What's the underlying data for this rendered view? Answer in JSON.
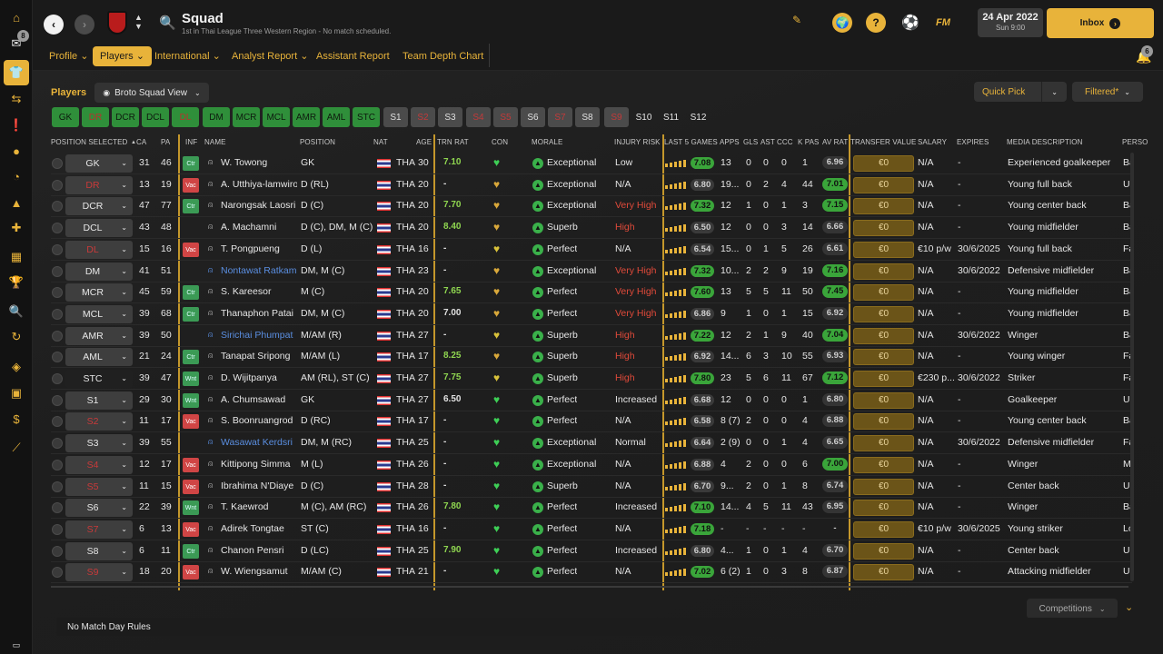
{
  "sidebar": {
    "badges": {
      "inbox": "8"
    },
    "icons": [
      "home-icon",
      "inbox-icon",
      "squad-icon",
      "transfers-icon",
      "schedule-icon",
      "competitions-icon",
      "training-icon",
      "medical-icon",
      "calendar-icon",
      "trophy-icon",
      "search-icon",
      "refresh-icon",
      "club-icon",
      "briefcase-icon",
      "finances-icon",
      "dev-icon",
      "small-screen-icon"
    ]
  },
  "header": {
    "club_badge": "crest-icon",
    "search_icon": "search-icon",
    "title": "Squad",
    "subtitle": "1st in Thai League Three Western Region - No match scheduled.",
    "date": "24 Apr 2022",
    "time": "Sun 9:00",
    "inbox_label": "Inbox",
    "inbox_badge": "6",
    "fm_label": "FM"
  },
  "subnav": {
    "items": [
      {
        "label": "Profile",
        "chevron": true
      },
      {
        "label": "Players",
        "chevron": true,
        "active": true
      },
      {
        "label": "International",
        "chevron": true
      },
      {
        "label": "Analyst Report",
        "chevron": true
      },
      {
        "label": "Assistant Report",
        "chevron": false
      },
      {
        "label": "Team Depth Chart",
        "chevron": false
      }
    ]
  },
  "toolbar": {
    "section_label": "Players",
    "view_label": "Broto Squad View",
    "quick_pick": "Quick Pick",
    "filtered": "Filtered*"
  },
  "position_buttons": [
    {
      "label": "GK",
      "style": "green"
    },
    {
      "label": "DR",
      "style": "green-red"
    },
    {
      "label": "DCR",
      "style": "green"
    },
    {
      "label": "DCL",
      "style": "green"
    },
    {
      "label": "DL",
      "style": "green-red"
    },
    {
      "label": "DM",
      "style": "green"
    },
    {
      "label": "MCR",
      "style": "green"
    },
    {
      "label": "MCL",
      "style": "green"
    },
    {
      "label": "AMR",
      "style": "green"
    },
    {
      "label": "AML",
      "style": "green"
    },
    {
      "label": "STC",
      "style": "green"
    },
    {
      "label": "S1",
      "style": "gray"
    },
    {
      "label": "S2",
      "style": "gray-red"
    },
    {
      "label": "S3",
      "style": "gray"
    },
    {
      "label": "S4",
      "style": "gray-red"
    },
    {
      "label": "S5",
      "style": "gray-red"
    },
    {
      "label": "S6",
      "style": "gray"
    },
    {
      "label": "S7",
      "style": "gray-red"
    },
    {
      "label": "S8",
      "style": "gray"
    },
    {
      "label": "S9",
      "style": "gray-red"
    },
    {
      "label": "S10",
      "style": "none"
    },
    {
      "label": "S11",
      "style": "none"
    },
    {
      "label": "S12",
      "style": "none"
    }
  ],
  "columns": [
    "POSITION SELECTED",
    "CA",
    "PA",
    "INF",
    "NAME",
    "POSITION",
    "NAT",
    "AGE",
    "TRN RAT",
    "CON",
    "MORALE",
    "INJURY RISK",
    "LAST 5 GAMES",
    "APPS",
    "GLS",
    "AST",
    "CCC",
    "K PAS",
    "AV RAT",
    "TRANSFER VALUE",
    "SALARY",
    "EXPIRES",
    "MEDIA DESCRIPTION",
    "PERSO"
  ],
  "rows": [
    {
      "sel": "GK",
      "sel_red": false,
      "ca": "31",
      "pa": "46",
      "inf": "Ctr",
      "name": "W. Towong",
      "name_blue": false,
      "pos": "GK",
      "nat": "THA",
      "age": "30",
      "trn": "7.10",
      "trn_g": true,
      "heart": "#3ecf56",
      "morale": "Exceptional",
      "injury": "Low",
      "injury_red": false,
      "last5": "7.08",
      "last5_g": true,
      "apps": "13",
      "gls": "0",
      "ast": "0",
      "ccc": "0",
      "kpas": "1",
      "avrat": "6.96",
      "avrat_g": false,
      "tv": "€0",
      "salary": "N/A",
      "expires": "-",
      "media": "Experienced goalkeeper",
      "perso": "Bal"
    },
    {
      "sel": "DR",
      "sel_red": true,
      "ca": "13",
      "pa": "19",
      "inf": "Vac",
      "name": "A. Utthiya-lamwiroj",
      "name_blue": false,
      "pos": "D (RL)",
      "nat": "THA",
      "age": "20",
      "trn": "-",
      "trn_g": false,
      "heart": "#d9a83a",
      "morale": "Exceptional",
      "injury": "N/A",
      "injury_red": false,
      "last5": "6.80",
      "last5_g": false,
      "apps": "19...",
      "gls": "0",
      "ast": "2",
      "ccc": "4",
      "kpas": "44",
      "avrat": "7.01",
      "avrat_g": true,
      "tv": "€0",
      "salary": "N/A",
      "expires": "-",
      "media": "Young full back",
      "perso": "Una"
    },
    {
      "sel": "DCR",
      "sel_red": false,
      "ca": "47",
      "pa": "77",
      "inf": "Ctr",
      "name": "Narongsak Laosri",
      "name_blue": false,
      "pos": "D (C)",
      "nat": "THA",
      "age": "20",
      "trn": "7.70",
      "trn_g": true,
      "heart": "#d9a83a",
      "morale": "Exceptional",
      "injury": "Very High",
      "injury_red": true,
      "last5": "7.32",
      "last5_g": true,
      "apps": "12",
      "gls": "1",
      "ast": "0",
      "ccc": "1",
      "kpas": "3",
      "avrat": "7.15",
      "avrat_g": true,
      "tv": "€0",
      "salary": "N/A",
      "expires": "-",
      "media": "Young center back",
      "perso": "Bal"
    },
    {
      "sel": "DCL",
      "sel_red": false,
      "ca": "43",
      "pa": "48",
      "inf": "",
      "name": "A. Machamni",
      "name_blue": false,
      "pos": "D (C), DM, M (C)",
      "nat": "THA",
      "age": "20",
      "trn": "8.40",
      "trn_g": true,
      "heart": "#d9a83a",
      "morale": "Superb",
      "injury": "High",
      "injury_red": true,
      "last5": "6.50",
      "last5_g": false,
      "apps": "12",
      "gls": "0",
      "ast": "0",
      "ccc": "3",
      "kpas": "14",
      "avrat": "6.66",
      "avrat_g": false,
      "tv": "€0",
      "salary": "N/A",
      "expires": "-",
      "media": "Young midfielder",
      "perso": "Bal"
    },
    {
      "sel": "DL",
      "sel_red": true,
      "ca": "15",
      "pa": "16",
      "inf": "Vac",
      "name": "T. Pongpueng",
      "name_blue": false,
      "pos": "D (L)",
      "nat": "THA",
      "age": "16",
      "trn": "-",
      "trn_g": false,
      "heart": "#d9c23a",
      "morale": "Perfect",
      "injury": "N/A",
      "injury_red": false,
      "last5": "6.54",
      "last5_g": false,
      "apps": "15...",
      "gls": "0",
      "ast": "1",
      "ccc": "5",
      "kpas": "26",
      "avrat": "6.61",
      "avrat_g": false,
      "tv": "€0",
      "salary": "€10 p/w",
      "expires": "30/6/2025",
      "media": "Young full back",
      "perso": "Fai"
    },
    {
      "sel": "DM",
      "sel_red": false,
      "ca": "41",
      "pa": "51",
      "inf": "",
      "name": "Nontawat Ratkam",
      "name_blue": true,
      "pos": "DM, M (C)",
      "nat": "THA",
      "age": "23",
      "trn": "-",
      "trn_g": false,
      "heart": "#d9a83a",
      "morale": "Exceptional",
      "injury": "Very High",
      "injury_red": true,
      "last5": "7.32",
      "last5_g": true,
      "apps": "10...",
      "gls": "2",
      "ast": "2",
      "ccc": "9",
      "kpas": "19",
      "avrat": "7.16",
      "avrat_g": true,
      "tv": "€0",
      "salary": "N/A",
      "expires": "30/6/2022",
      "media": "Defensive midfielder",
      "perso": "Bal"
    },
    {
      "sel": "MCR",
      "sel_red": false,
      "ca": "45",
      "pa": "59",
      "inf": "Ctr",
      "name": "S. Kareesor",
      "name_blue": false,
      "pos": "M (C)",
      "nat": "THA",
      "age": "20",
      "trn": "7.65",
      "trn_g": true,
      "heart": "#d9a83a",
      "morale": "Perfect",
      "injury": "Very High",
      "injury_red": true,
      "last5": "7.60",
      "last5_g": true,
      "apps": "13",
      "gls": "5",
      "ast": "5",
      "ccc": "11",
      "kpas": "50",
      "avrat": "7.45",
      "avrat_g": true,
      "tv": "€0",
      "salary": "N/A",
      "expires": "-",
      "media": "Young midfielder",
      "perso": "Bal"
    },
    {
      "sel": "MCL",
      "sel_red": false,
      "ca": "39",
      "pa": "68",
      "inf": "Ctr",
      "name": "Thanaphon Patai",
      "name_blue": false,
      "pos": "DM, M (C)",
      "nat": "THA",
      "age": "20",
      "trn": "7.00",
      "trn_g": false,
      "heart": "#d9a83a",
      "morale": "Perfect",
      "injury": "Very High",
      "injury_red": true,
      "last5": "6.86",
      "last5_g": false,
      "apps": "9",
      "gls": "1",
      "ast": "0",
      "ccc": "1",
      "kpas": "15",
      "avrat": "6.92",
      "avrat_g": false,
      "tv": "€0",
      "salary": "N/A",
      "expires": "-",
      "media": "Young midfielder",
      "perso": "Bal"
    },
    {
      "sel": "AMR",
      "sel_red": false,
      "ca": "39",
      "pa": "50",
      "inf": "",
      "name": "Sirichai Phumpat",
      "name_blue": true,
      "pos": "M/AM (R)",
      "nat": "THA",
      "age": "27",
      "trn": "-",
      "trn_g": false,
      "heart": "#d9c23a",
      "morale": "Superb",
      "injury": "High",
      "injury_red": true,
      "last5": "7.22",
      "last5_g": true,
      "apps": "12",
      "gls": "2",
      "ast": "1",
      "ccc": "9",
      "kpas": "40",
      "avrat": "7.04",
      "avrat_g": true,
      "tv": "€0",
      "salary": "N/A",
      "expires": "30/6/2022",
      "media": "Winger",
      "perso": "Bal"
    },
    {
      "sel": "AML",
      "sel_red": false,
      "ca": "21",
      "pa": "24",
      "inf": "Ctr",
      "name": "Tanapat Sripong",
      "name_blue": false,
      "pos": "M/AM (L)",
      "nat": "THA",
      "age": "17",
      "trn": "8.25",
      "trn_g": true,
      "heart": "#d9a83a",
      "morale": "Superb",
      "injury": "High",
      "injury_red": true,
      "last5": "6.92",
      "last5_g": false,
      "apps": "14...",
      "gls": "6",
      "ast": "3",
      "ccc": "10",
      "kpas": "55",
      "avrat": "6.93",
      "avrat_g": false,
      "tv": "€0",
      "salary": "N/A",
      "expires": "-",
      "media": "Young winger",
      "perso": "Fai"
    },
    {
      "sel": "STC",
      "sel_red": false,
      "sel_dark": true,
      "ca": "39",
      "pa": "47",
      "inf": "Wnt",
      "name": "D. Wijitpanya",
      "name_blue": false,
      "pos": "AM (RL), ST (C)",
      "nat": "THA",
      "age": "27",
      "trn": "7.75",
      "trn_g": true,
      "heart": "#d9c23a",
      "morale": "Superb",
      "injury": "High",
      "injury_red": true,
      "last5": "7.80",
      "last5_g": true,
      "apps": "23",
      "gls": "5",
      "ast": "6",
      "ccc": "11",
      "kpas": "67",
      "avrat": "7.12",
      "avrat_g": true,
      "tv": "€0",
      "salary": "€230 p...",
      "expires": "30/6/2022",
      "media": "Striker",
      "perso": "Fai"
    },
    {
      "sel": "S1",
      "sel_red": false,
      "ca": "29",
      "pa": "30",
      "inf": "Wnt",
      "name": "A. Chumsawad",
      "name_blue": false,
      "pos": "GK",
      "nat": "THA",
      "age": "27",
      "trn": "6.50",
      "trn_g": false,
      "heart": "#3ecf56",
      "morale": "Perfect",
      "injury": "Increased",
      "injury_red": false,
      "last5": "6.68",
      "last5_g": false,
      "apps": "12",
      "gls": "0",
      "ast": "0",
      "ccc": "0",
      "kpas": "1",
      "avrat": "6.80",
      "avrat_g": false,
      "tv": "€0",
      "salary": "N/A",
      "expires": "-",
      "media": "Goalkeeper",
      "perso": "Una"
    },
    {
      "sel": "S2",
      "sel_red": true,
      "ca": "11",
      "pa": "17",
      "inf": "Vac",
      "name": "S. Boonruangrod",
      "name_blue": false,
      "pos": "D (RC)",
      "nat": "THA",
      "age": "17",
      "trn": "-",
      "trn_g": false,
      "heart": "#3ecf56",
      "morale": "Perfect",
      "injury": "N/A",
      "injury_red": false,
      "last5": "6.58",
      "last5_g": false,
      "apps": "8 (7)",
      "gls": "2",
      "ast": "0",
      "ccc": "0",
      "kpas": "4",
      "avrat": "6.88",
      "avrat_g": false,
      "tv": "€0",
      "salary": "N/A",
      "expires": "-",
      "media": "Young center back",
      "perso": "Bal"
    },
    {
      "sel": "S3",
      "sel_red": false,
      "ca": "39",
      "pa": "55",
      "inf": "",
      "name": "Wasawat Kerdsri",
      "name_blue": true,
      "pos": "DM, M (RC)",
      "nat": "THA",
      "age": "25",
      "trn": "-",
      "trn_g": false,
      "heart": "#3ecf56",
      "morale": "Exceptional",
      "injury": "Normal",
      "injury_red": false,
      "last5": "6.64",
      "last5_g": false,
      "apps": "2 (9)",
      "gls": "0",
      "ast": "0",
      "ccc": "1",
      "kpas": "4",
      "avrat": "6.65",
      "avrat_g": false,
      "tv": "€0",
      "salary": "N/A",
      "expires": "30/6/2022",
      "media": "Defensive midfielder",
      "perso": "Fai"
    },
    {
      "sel": "S4",
      "sel_red": true,
      "ca": "12",
      "pa": "17",
      "inf": "Vac",
      "name": "Kittipong Simma",
      "name_blue": false,
      "pos": "M (L)",
      "nat": "THA",
      "age": "26",
      "trn": "-",
      "trn_g": false,
      "heart": "#3ecf56",
      "morale": "Exceptional",
      "injury": "N/A",
      "injury_red": false,
      "last5": "6.88",
      "last5_g": false,
      "apps": "4",
      "gls": "2",
      "ast": "0",
      "ccc": "0",
      "kpas": "6",
      "avrat": "7.00",
      "avrat_g": true,
      "tv": "€0",
      "salary": "N/A",
      "expires": "-",
      "media": "Winger",
      "perso": "Mo"
    },
    {
      "sel": "S5",
      "sel_red": true,
      "ca": "11",
      "pa": "15",
      "inf": "Vac",
      "name": "Ibrahima N'Diaye",
      "name_blue": false,
      "pos": "D (C)",
      "nat": "THA",
      "age": "28",
      "trn": "-",
      "trn_g": false,
      "heart": "#3ecf56",
      "morale": "Superb",
      "injury": "N/A",
      "injury_red": false,
      "last5": "6.70",
      "last5_g": false,
      "apps": "9...",
      "gls": "2",
      "ast": "0",
      "ccc": "1",
      "kpas": "8",
      "avrat": "6.74",
      "avrat_g": false,
      "tv": "€0",
      "salary": "N/A",
      "expires": "-",
      "media": "Center back",
      "perso": "Una"
    },
    {
      "sel": "S6",
      "sel_red": false,
      "ca": "22",
      "pa": "39",
      "inf": "Wnt",
      "name": "T. Kaewrod",
      "name_blue": false,
      "pos": "M (C), AM (RC)",
      "nat": "THA",
      "age": "26",
      "trn": "7.80",
      "trn_g": true,
      "heart": "#3ecf56",
      "morale": "Perfect",
      "injury": "Increased",
      "injury_red": false,
      "last5": "7.10",
      "last5_g": true,
      "apps": "14...",
      "gls": "4",
      "ast": "5",
      "ccc": "11",
      "kpas": "43",
      "avrat": "6.95",
      "avrat_g": false,
      "tv": "€0",
      "salary": "N/A",
      "expires": "-",
      "media": "Winger",
      "perso": "Bal"
    },
    {
      "sel": "S7",
      "sel_red": true,
      "ca": "6",
      "pa": "13",
      "inf": "Vac",
      "name": "Adirek Tongtae",
      "name_blue": false,
      "pos": "ST (C)",
      "nat": "THA",
      "age": "16",
      "trn": "-",
      "trn_g": false,
      "heart": "#3ecf56",
      "morale": "Perfect",
      "injury": "N/A",
      "injury_red": false,
      "last5": "7.18",
      "last5_g": true,
      "apps": "-",
      "gls": "-",
      "ast": "-",
      "ccc": "-",
      "kpas": "-",
      "avrat": "-",
      "avrat_g": false,
      "tv": "€0",
      "salary": "€10 p/w",
      "expires": "30/6/2025",
      "media": "Young striker",
      "perso": "Low"
    },
    {
      "sel": "S8",
      "sel_red": false,
      "ca": "6",
      "pa": "11",
      "inf": "Ctr",
      "name": "Chanon Pensri",
      "name_blue": false,
      "pos": "D (LC)",
      "nat": "THA",
      "age": "25",
      "trn": "7.90",
      "trn_g": true,
      "heart": "#3ecf56",
      "morale": "Perfect",
      "injury": "Increased",
      "injury_red": false,
      "last5": "6.80",
      "last5_g": false,
      "apps": "4...",
      "gls": "1",
      "ast": "0",
      "ccc": "1",
      "kpas": "4",
      "avrat": "6.70",
      "avrat_g": false,
      "tv": "€0",
      "salary": "N/A",
      "expires": "-",
      "media": "Center back",
      "perso": "Una"
    },
    {
      "sel": "S9",
      "sel_red": true,
      "ca": "18",
      "pa": "20",
      "inf": "Vac",
      "name": "W. Wiengsamut",
      "name_blue": false,
      "pos": "M/AM (C)",
      "nat": "THA",
      "age": "21",
      "trn": "-",
      "trn_g": false,
      "heart": "#3ecf56",
      "morale": "Perfect",
      "injury": "N/A",
      "injury_red": false,
      "last5": "7.02",
      "last5_g": true,
      "apps": "6 (2)",
      "gls": "1",
      "ast": "0",
      "ccc": "3",
      "kpas": "8",
      "avrat": "6.87",
      "avrat_g": false,
      "tv": "€0",
      "salary": "N/A",
      "expires": "-",
      "media": "Attacking midfielder",
      "perso": "Una"
    }
  ],
  "footer": {
    "competitions": "Competitions",
    "match_day": "No Match Day Rules"
  },
  "colors": {
    "accent": "#e8b33a",
    "green": "#3aa53a",
    "red": "#c93a3a",
    "link": "#5a8ee0"
  }
}
